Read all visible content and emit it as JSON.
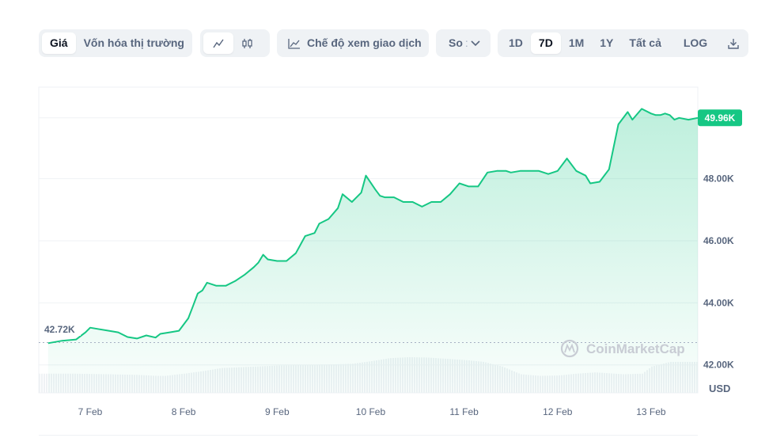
{
  "toolbar": {
    "metric_tabs": [
      {
        "label": "Giá",
        "active": true
      },
      {
        "label": "Vốn hóa thị trường",
        "active": false
      }
    ],
    "chart_type_icons": [
      "line-chart-icon",
      "candlestick-icon"
    ],
    "trading_view_label": "Chế độ xem giao dịch",
    "compare_label": "So",
    "ranges": [
      {
        "label": "1D",
        "active": false
      },
      {
        "label": "7D",
        "active": true
      },
      {
        "label": "1M",
        "active": false
      },
      {
        "label": "1Y",
        "active": false
      },
      {
        "label": "Tất cả",
        "active": false
      }
    ],
    "log_label": "LOG",
    "download_icon": "download-icon"
  },
  "colors": {
    "line": "#16c784",
    "accent_badge": "#16c784",
    "grid": "#eff2f5",
    "axis_text": "#58667e",
    "volume": "#eff2f5"
  },
  "chart_data": {
    "type": "line",
    "title": "",
    "currency_label": "USD",
    "x_ticks": [
      "7 Feb",
      "8 Feb",
      "9 Feb",
      "10 Feb",
      "11 Feb",
      "12 Feb",
      "13 Feb"
    ],
    "y_ticks": [
      "48.00K",
      "46.00K",
      "44.00K",
      "42.00K"
    ],
    "ylim": [
      41100,
      50950
    ],
    "start_label": "42.72K",
    "start_value": 42720,
    "current_label": "49.96K",
    "current_value": 49960,
    "watermark": "CoinMarketCap",
    "series": [
      {
        "x": [
          6.55,
          6.7,
          6.85,
          6.95,
          7.0,
          7.1,
          7.2,
          7.3,
          7.4,
          7.5,
          7.6,
          7.7,
          7.75,
          7.85,
          7.95,
          8.05,
          8.1,
          8.15,
          8.2,
          8.25,
          8.35,
          8.45,
          8.55,
          8.65,
          8.75,
          8.8,
          8.85,
          8.9,
          9.0,
          9.1,
          9.2,
          9.3,
          9.4,
          9.45,
          9.55,
          9.65,
          9.7,
          9.8,
          9.9,
          9.95,
          10.05,
          10.1,
          10.15,
          10.25,
          10.35,
          10.45,
          10.55,
          10.65,
          10.75,
          10.85,
          10.95,
          11.05,
          11.15,
          11.25,
          11.35,
          11.45,
          11.5,
          11.6,
          11.7,
          11.8,
          11.9,
          12.0,
          12.1,
          12.2,
          12.3,
          12.35,
          12.45,
          12.55,
          12.65,
          12.75,
          12.8,
          12.9,
          13.0,
          13.05,
          13.1,
          13.15,
          13.2,
          13.25,
          13.3,
          13.4,
          13.5
        ],
        "y": [
          42700,
          42780,
          42820,
          43050,
          43200,
          43150,
          43100,
          43050,
          42900,
          42850,
          42950,
          42880,
          43000,
          43050,
          43100,
          43500,
          43900,
          44300,
          44400,
          44650,
          44550,
          44550,
          44700,
          44900,
          45150,
          45300,
          45550,
          45400,
          45350,
          45350,
          45600,
          46150,
          46250,
          46550,
          46700,
          47050,
          47500,
          47250,
          47550,
          48100,
          47650,
          47450,
          47400,
          47400,
          47250,
          47250,
          47100,
          47250,
          47250,
          47500,
          47850,
          47750,
          47750,
          48200,
          48250,
          48250,
          48200,
          48250,
          48250,
          48250,
          48150,
          48250,
          48650,
          48250,
          48100,
          47850,
          47900,
          48300,
          49750,
          50150,
          49900,
          50250,
          50100,
          50050,
          50050,
          50100,
          50050,
          49900,
          49960,
          49900,
          49960
        ]
      }
    ],
    "volume": {
      "x": [
        6.45,
        6.8,
        7.2,
        7.5,
        7.7,
        7.8,
        8.0,
        8.2,
        8.4,
        8.7,
        9.0,
        9.3,
        9.6,
        9.8,
        10.0,
        10.2,
        10.4,
        10.6,
        10.8,
        11.0,
        11.2,
        11.4,
        11.6,
        11.8,
        12.0,
        12.2,
        12.4,
        12.6,
        12.7,
        12.9,
        13.0,
        13.2,
        13.5
      ],
      "v": [
        0.62,
        0.62,
        0.6,
        0.58,
        0.55,
        0.55,
        0.62,
        0.7,
        0.8,
        0.84,
        0.88,
        0.9,
        0.92,
        0.94,
        1.02,
        1.12,
        1.15,
        1.14,
        1.1,
        1.06,
        1.0,
        0.85,
        0.6,
        0.55,
        0.56,
        0.62,
        0.66,
        0.62,
        0.6,
        0.62,
        0.85,
        1.0,
        1.0
      ]
    }
  }
}
